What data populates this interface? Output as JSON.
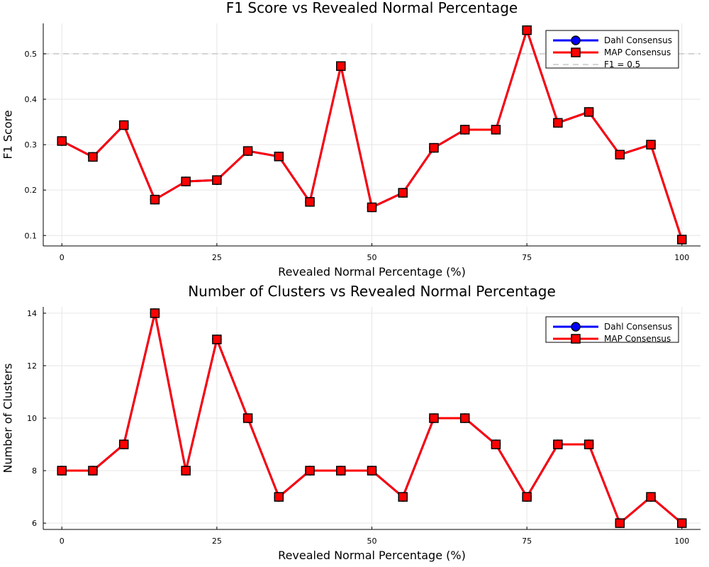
{
  "chart_data": [
    {
      "type": "line",
      "title": "F1 Score vs Revealed Normal Percentage",
      "xlabel": "Revealed Normal Percentage (%)",
      "ylabel": "F1 Score",
      "x": [
        0,
        5,
        10,
        15,
        20,
        25,
        30,
        35,
        40,
        45,
        50,
        55,
        60,
        65,
        70,
        75,
        80,
        85,
        90,
        95,
        100
      ],
      "xlim": [
        -3,
        103
      ],
      "ylim": [
        0.077,
        0.567
      ],
      "xticks": [
        0,
        25,
        50,
        75,
        100
      ],
      "xtick_labels": [
        "0",
        "25",
        "50",
        "75",
        "100"
      ],
      "yticks": [
        0.1,
        0.2,
        0.3,
        0.4,
        0.5
      ],
      "ytick_labels": [
        "0.1",
        "0.2",
        "0.3",
        "0.4",
        "0.5"
      ],
      "grid": true,
      "legend_position": "top-right",
      "series": [
        {
          "name": "Dahl Consensus",
          "color": "#0000ff",
          "marker": "circle",
          "values": [
            0.308,
            0.273,
            0.343,
            0.179,
            0.219,
            0.222,
            0.286,
            0.274,
            0.174,
            0.473,
            0.162,
            0.194,
            0.293,
            0.333,
            0.333,
            0.552,
            0.348,
            0.372,
            0.278,
            0.3,
            0.091
          ]
        },
        {
          "name": "MAP Consensus",
          "color": "#ff0000",
          "marker": "square",
          "values": [
            0.308,
            0.273,
            0.343,
            0.179,
            0.219,
            0.222,
            0.286,
            0.274,
            0.174,
            0.473,
            0.162,
            0.194,
            0.293,
            0.333,
            0.333,
            0.552,
            0.348,
            0.372,
            0.278,
            0.3,
            0.091
          ]
        }
      ],
      "reference_lines": [
        {
          "name": "F1 = 0.5",
          "y": 0.5,
          "color": "#c8c8c8",
          "style": "dashed"
        }
      ]
    },
    {
      "type": "line",
      "title": "Number of Clusters vs Revealed Normal Percentage",
      "xlabel": "Revealed Normal Percentage (%)",
      "ylabel": "Number of Clusters",
      "x": [
        0,
        5,
        10,
        15,
        20,
        25,
        30,
        35,
        40,
        45,
        50,
        55,
        60,
        65,
        70,
        75,
        80,
        85,
        90,
        95,
        100
      ],
      "xlim": [
        -3,
        103
      ],
      "ylim": [
        5.76,
        14.24
      ],
      "xticks": [
        0,
        25,
        50,
        75,
        100
      ],
      "xtick_labels": [
        "0",
        "25",
        "50",
        "75",
        "100"
      ],
      "yticks": [
        6,
        8,
        10,
        12,
        14
      ],
      "ytick_labels": [
        "6",
        "8",
        "10",
        "12",
        "14"
      ],
      "grid": true,
      "legend_position": "top-right",
      "series": [
        {
          "name": "Dahl Consensus",
          "color": "#0000ff",
          "marker": "circle",
          "values": [
            8,
            8,
            9,
            14,
            8,
            13,
            10,
            7,
            8,
            8,
            8,
            7,
            10,
            10,
            9,
            7,
            9,
            9,
            6,
            7,
            6
          ]
        },
        {
          "name": "MAP Consensus",
          "color": "#ff0000",
          "marker": "square",
          "values": [
            8,
            8,
            9,
            14,
            8,
            13,
            10,
            7,
            8,
            8,
            8,
            7,
            10,
            10,
            9,
            7,
            9,
            9,
            6,
            7,
            6
          ]
        }
      ],
      "reference_lines": []
    }
  ]
}
